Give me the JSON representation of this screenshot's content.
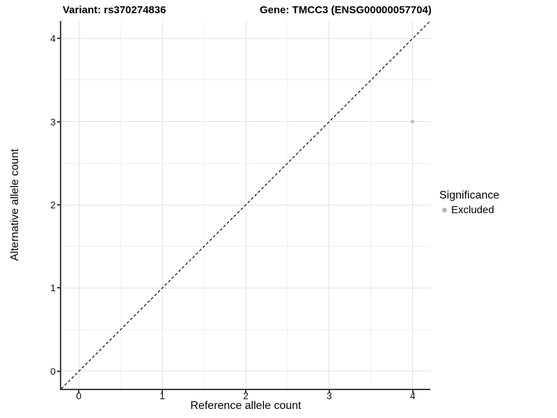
{
  "titles": {
    "left": "Variant: rs370274836",
    "right": "Gene: TMCC3 (ENSG00000057704)"
  },
  "axes": {
    "x": {
      "label": "Reference allele count",
      "tick_labels": [
        "0",
        "1",
        "2",
        "3",
        "4"
      ]
    },
    "y": {
      "label": "Alternative allele count",
      "tick_labels": [
        "0",
        "1",
        "2",
        "3",
        "4"
      ]
    }
  },
  "legend": {
    "title": "Significance",
    "items": [
      {
        "label": "Excluded",
        "color": "#b9b9b9"
      }
    ]
  },
  "chart_data": {
    "type": "scatter",
    "title": "Variant: rs370274836 — Gene: TMCC3 (ENSG00000057704)",
    "xlabel": "Reference allele count",
    "ylabel": "Alternative allele count",
    "xlim": [
      -0.21,
      4.21
    ],
    "ylim": [
      -0.21,
      4.21
    ],
    "xticks": [
      0,
      1,
      2,
      3,
      4
    ],
    "yticks": [
      0,
      1,
      2,
      3,
      4
    ],
    "grid": "major+minor",
    "series": [
      {
        "name": "Excluded",
        "color": "#b9b9b9",
        "points": [
          {
            "x": 4,
            "y": 3
          }
        ]
      }
    ],
    "reference_line": {
      "type": "identity",
      "style": "dashed",
      "color": "#000000",
      "from": [
        -0.21,
        -0.21
      ],
      "to": [
        4.21,
        4.21
      ]
    },
    "colors": {
      "grid_major": "#e2e2e2",
      "grid_minor": "#efefef",
      "axis": "#3c3c3c"
    }
  }
}
